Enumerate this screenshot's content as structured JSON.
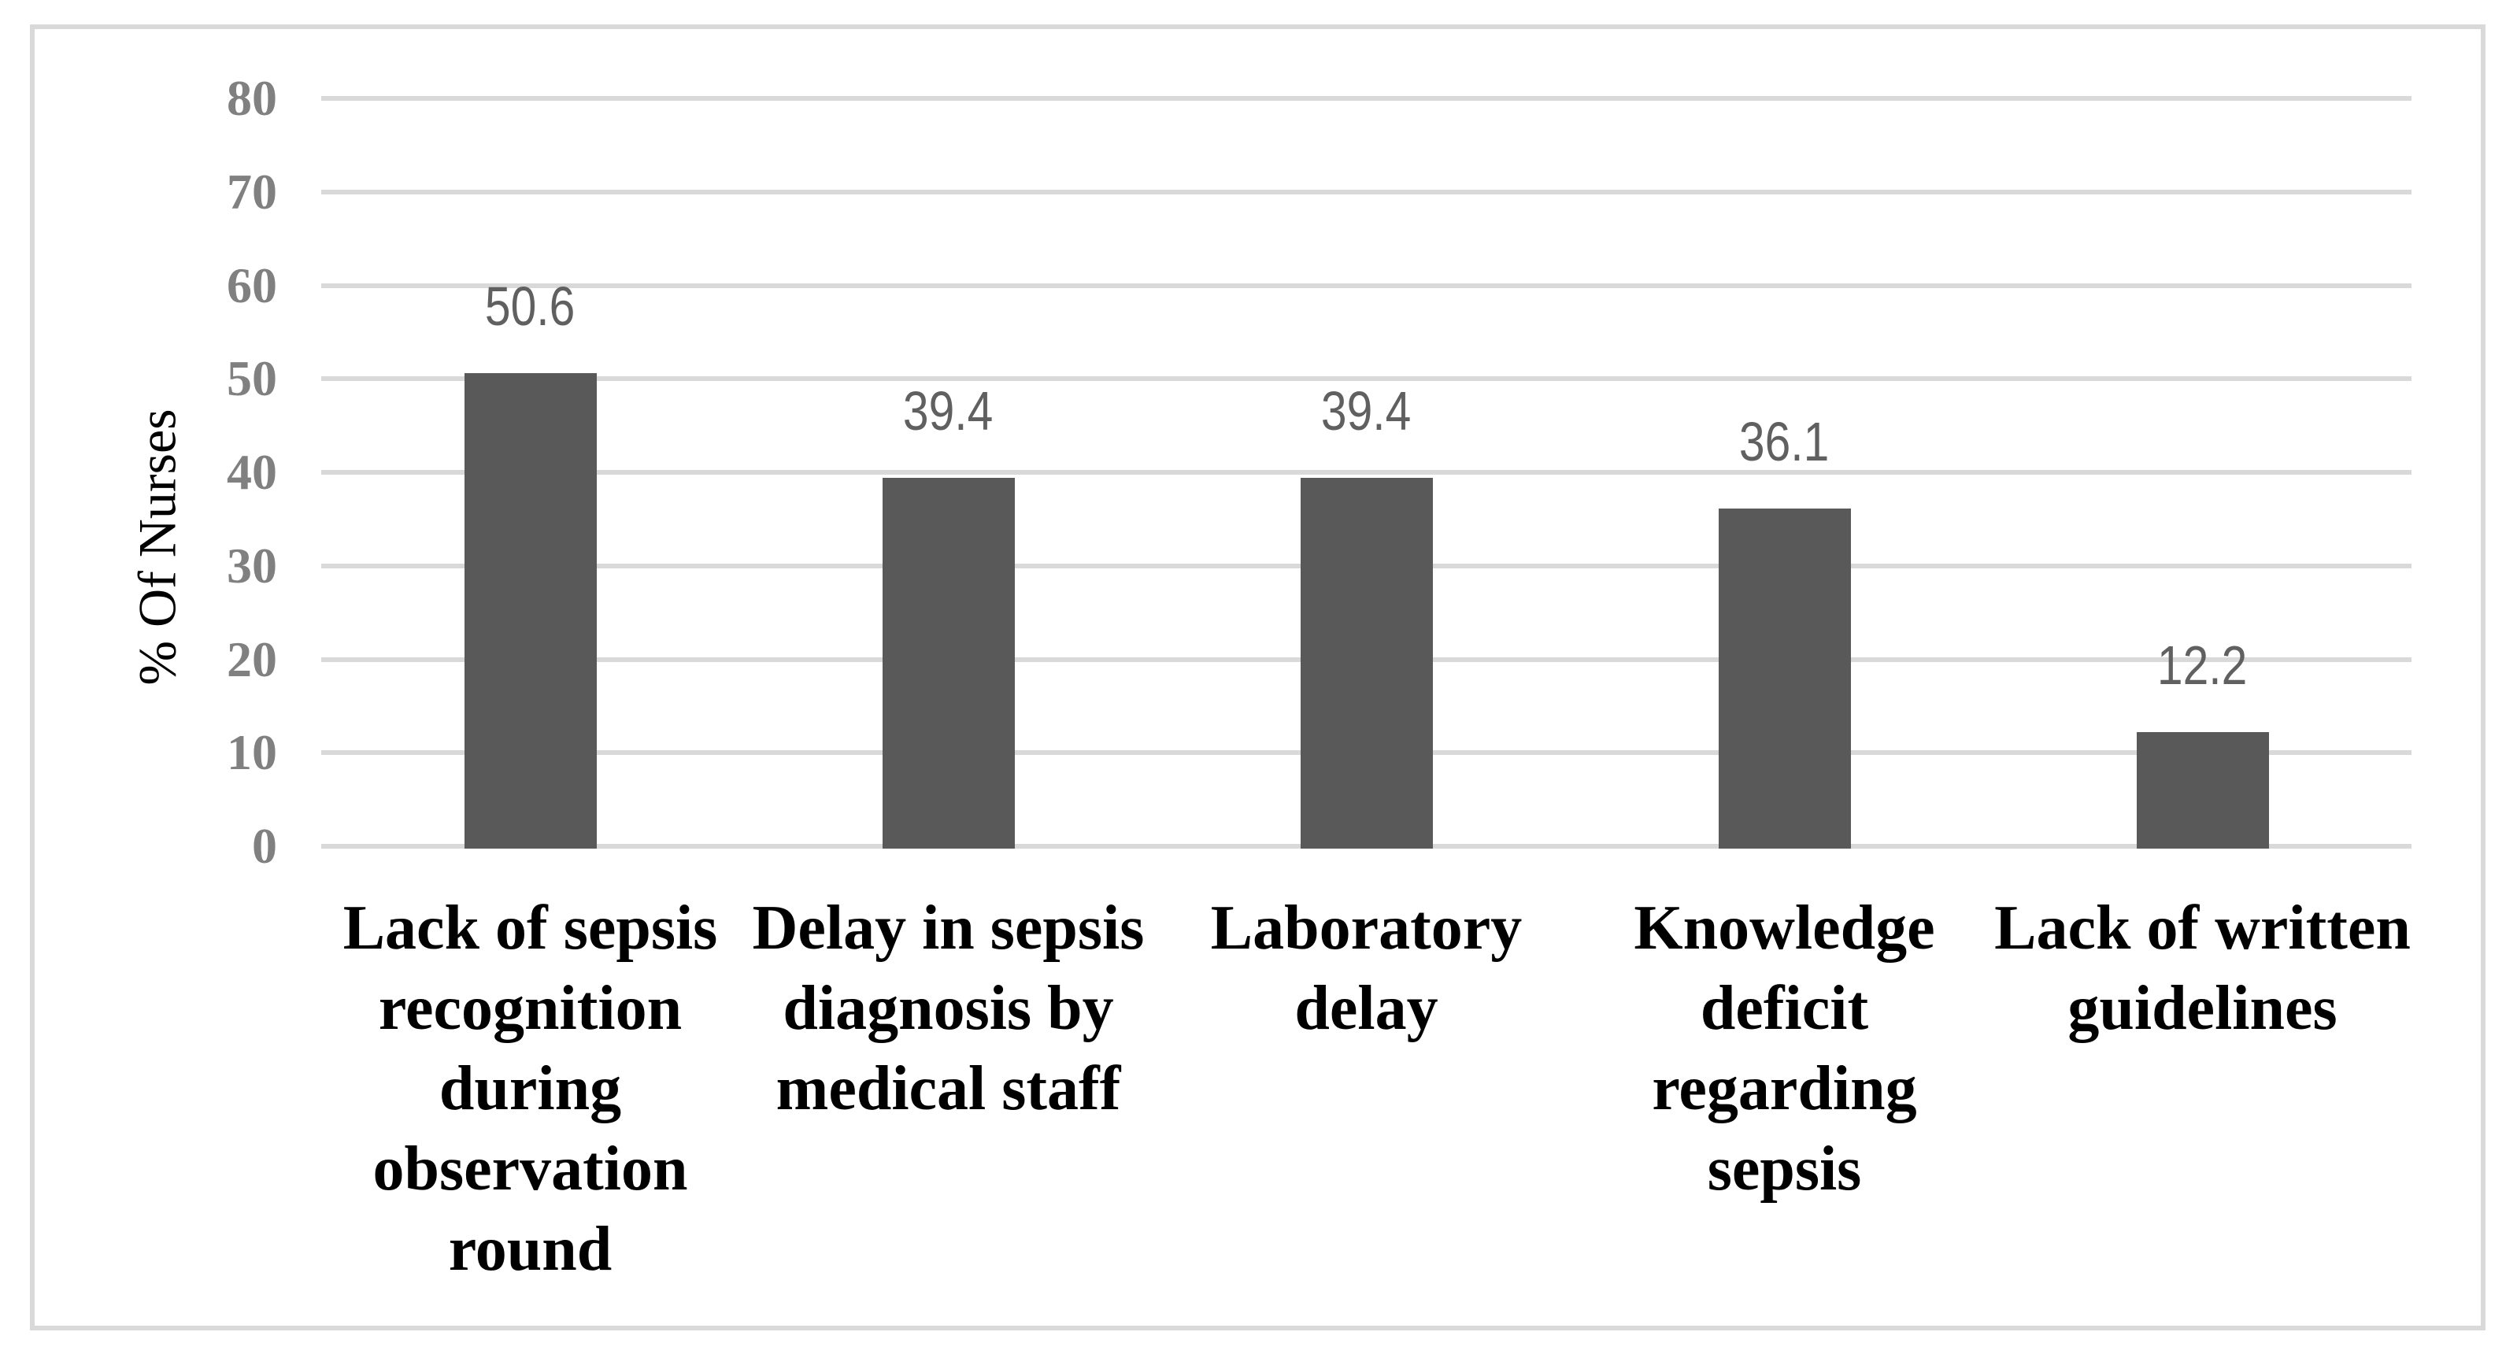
{
  "figure": {
    "background": "#ffffff",
    "border_color": "#d9d9d9"
  },
  "chart_data": {
    "type": "bar",
    "title": "",
    "ylabel": "% Of Nurses",
    "xlabel": "",
    "categories": [
      "Lack of sepsis recognition during observation round",
      "Delay in sepsis diagnosis by medical staff",
      "Laboratory delay",
      "Knowledge deficit regarding sepsis",
      "Lack of written guidelines"
    ],
    "category_lines": [
      [
        "Lack of sepsis",
        "recognition",
        "during",
        "observation",
        "round"
      ],
      [
        "Delay in sepsis",
        "diagnosis by",
        "medical staff"
      ],
      [
        "Laboratory",
        "delay"
      ],
      [
        "Knowledge",
        "deficit",
        "regarding",
        "sepsis"
      ],
      [
        "Lack of written",
        "guidelines"
      ]
    ],
    "values": [
      50.6,
      39.4,
      39.4,
      36.1,
      12.2
    ],
    "data_labels": [
      "50.6",
      "39.4",
      "39.4",
      "36.1",
      "12.2"
    ],
    "ylim": [
      0,
      80
    ],
    "yticks": [
      0,
      10,
      20,
      30,
      40,
      50,
      60,
      70,
      80
    ],
    "grid": "horizontal",
    "legend": "none",
    "colors": {
      "bar": "#595959",
      "gridline": "#d9d9d9",
      "tick_label": "#808080",
      "data_label": "#606060",
      "category_label": "#000000",
      "axis_title": "#000000"
    }
  }
}
